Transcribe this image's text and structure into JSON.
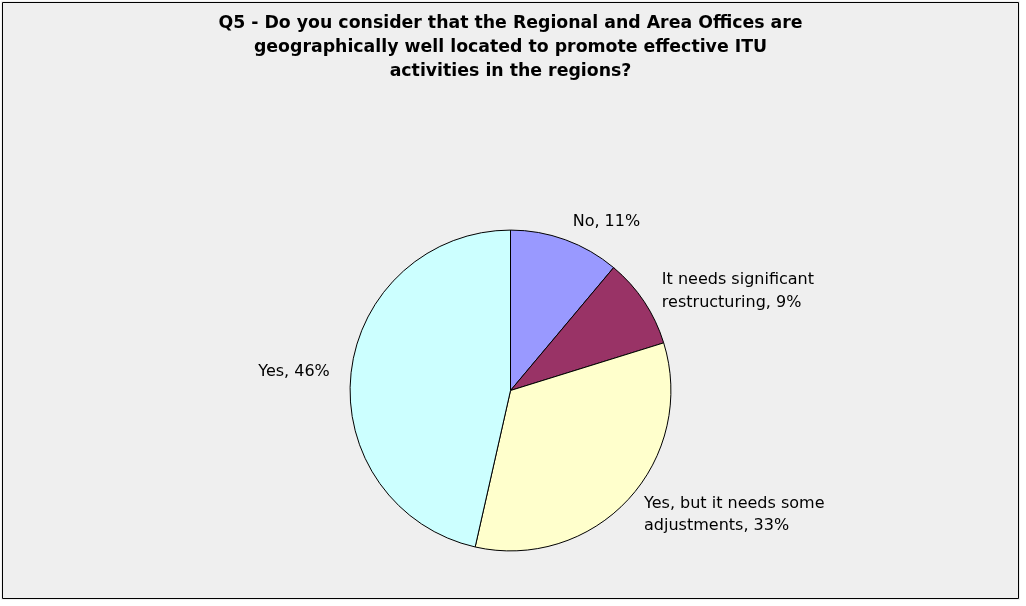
{
  "chart_data": {
    "type": "pie",
    "title": "Q5 - Do you consider that the Regional and Area Offices are geographically well located to promote effective ITU activities in the regions?",
    "categories": [
      "No",
      "It needs significant restructuring",
      "Yes, but it needs some adjustments",
      "Yes"
    ],
    "values": [
      11,
      9,
      33,
      46
    ],
    "value_labels": [
      "11%",
      "9%",
      "33%",
      "46%"
    ],
    "colors": [
      "#9999ff",
      "#993366",
      "#ffffcc",
      "#ccffff"
    ]
  }
}
